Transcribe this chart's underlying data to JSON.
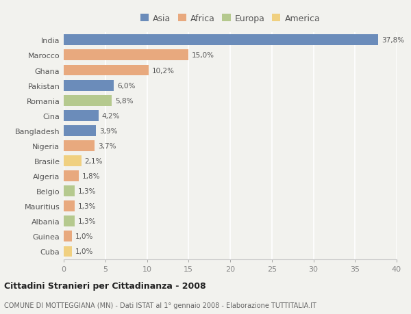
{
  "categories": [
    "India",
    "Marocco",
    "Ghana",
    "Pakistan",
    "Romania",
    "Cina",
    "Bangladesh",
    "Nigeria",
    "Brasile",
    "Algeria",
    "Belgio",
    "Mauritius",
    "Albania",
    "Guinea",
    "Cuba"
  ],
  "values": [
    37.8,
    15.0,
    10.2,
    6.0,
    5.8,
    4.2,
    3.9,
    3.7,
    2.1,
    1.8,
    1.3,
    1.3,
    1.3,
    1.0,
    1.0
  ],
  "labels": [
    "37,8%",
    "15,0%",
    "10,2%",
    "6,0%",
    "5,8%",
    "4,2%",
    "3,9%",
    "3,7%",
    "2,1%",
    "1,8%",
    "1,3%",
    "1,3%",
    "1,3%",
    "1,0%",
    "1,0%"
  ],
  "continent": [
    "Asia",
    "Africa",
    "Africa",
    "Asia",
    "Europa",
    "Asia",
    "Asia",
    "Africa",
    "America",
    "Africa",
    "Europa",
    "Africa",
    "Europa",
    "Africa",
    "America"
  ],
  "colors": {
    "Asia": "#6b8cba",
    "Africa": "#e8a97e",
    "Europa": "#b5c98e",
    "America": "#f0d080"
  },
  "xlim": [
    0,
    40
  ],
  "xticks": [
    0,
    5,
    10,
    15,
    20,
    25,
    30,
    35,
    40
  ],
  "title": "Cittadini Stranieri per Cittadinanza - 2008",
  "subtitle": "COMUNE DI MOTTEGGIANA (MN) - Dati ISTAT al 1° gennaio 2008 - Elaborazione TUTTITALIA.IT",
  "background_color": "#f2f2ee",
  "grid_color": "#ffffff",
  "bar_height": 0.72,
  "legend_order": [
    "Asia",
    "Africa",
    "Europa",
    "America"
  ]
}
